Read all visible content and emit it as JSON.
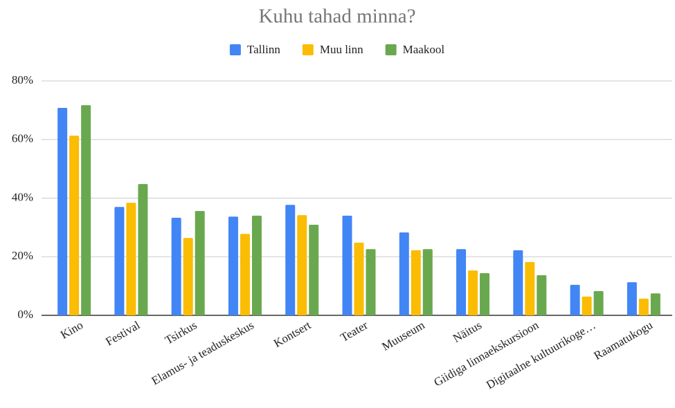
{
  "chart_data": {
    "type": "bar",
    "title": "Kuhu tahad minna?",
    "categories": [
      "Kino",
      "Festival",
      "Tsirkus",
      "Elamus- ja teaduskeskus",
      "Kontsert",
      "Teater",
      "Muuseum",
      "Näitus",
      "Giidiga linnaekskursioon",
      "Digitaalne kultuurikoge…",
      "Raamatukogu"
    ],
    "series": [
      {
        "name": "Tallinn",
        "color": "#4285f4",
        "values": [
          70.8,
          37,
          33.3,
          33.7,
          37.7,
          34,
          28.3,
          22.6,
          22.2,
          10.4,
          11.3
        ]
      },
      {
        "name": "Muu linn",
        "color": "#fbbc04",
        "values": [
          61.3,
          38.4,
          26.4,
          27.8,
          34.2,
          24.8,
          22.2,
          15.3,
          18.2,
          6.4,
          5.7
        ]
      },
      {
        "name": "Maakool",
        "color": "#6aa84f",
        "values": [
          71.7,
          44.8,
          35.6,
          34,
          30.9,
          22.6,
          22.6,
          14.4,
          13.7,
          8.3,
          7.5
        ]
      }
    ],
    "ylim": [
      0,
      80
    ],
    "yticks": [
      {
        "value": 0,
        "label": "0%"
      },
      {
        "value": 20,
        "label": "20%"
      },
      {
        "value": 40,
        "label": "40%"
      },
      {
        "value": 60,
        "label": "60%"
      },
      {
        "value": 80,
        "label": "80%"
      }
    ],
    "grid": true,
    "legend": "top"
  }
}
